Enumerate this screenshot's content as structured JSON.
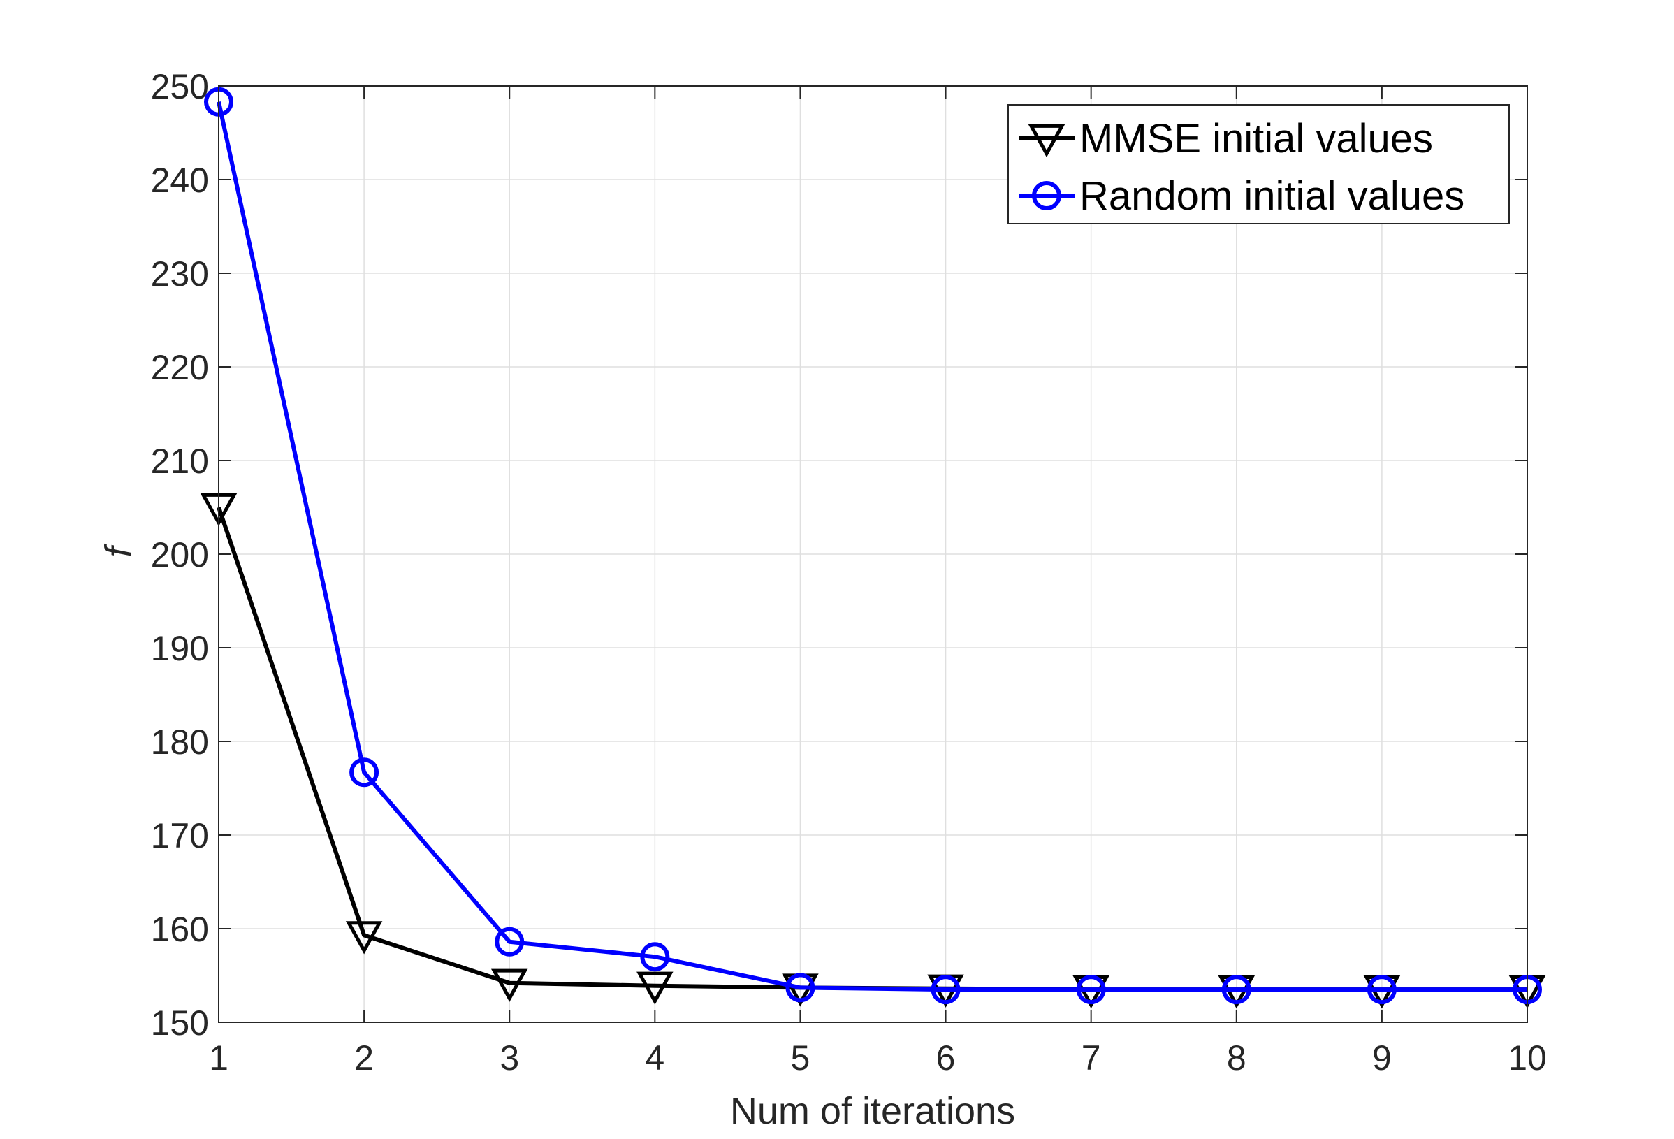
{
  "chart_data": {
    "type": "line",
    "title": "",
    "xlabel": "Num of iterations",
    "ylabel": "f",
    "xlim": [
      1,
      10
    ],
    "ylim": [
      150,
      250
    ],
    "xticks": [
      1,
      2,
      3,
      4,
      5,
      6,
      7,
      8,
      9,
      10
    ],
    "yticks": [
      150,
      160,
      170,
      180,
      190,
      200,
      210,
      220,
      230,
      240,
      250
    ],
    "grid": true,
    "legend_position": "top-right",
    "x": [
      1,
      2,
      3,
      4,
      5,
      6,
      7,
      8,
      9,
      10
    ],
    "series": [
      {
        "name": "MMSE initial values",
        "color": "#000000",
        "marker": "triangle-down",
        "values": [
          205.0,
          159.3,
          154.2,
          153.9,
          153.7,
          153.6,
          153.5,
          153.5,
          153.5,
          153.5
        ]
      },
      {
        "name": "Random initial values",
        "color": "#0000ff",
        "marker": "circle",
        "values": [
          248.3,
          176.7,
          158.6,
          157.0,
          153.7,
          153.5,
          153.5,
          153.5,
          153.5,
          153.5
        ]
      }
    ]
  }
}
